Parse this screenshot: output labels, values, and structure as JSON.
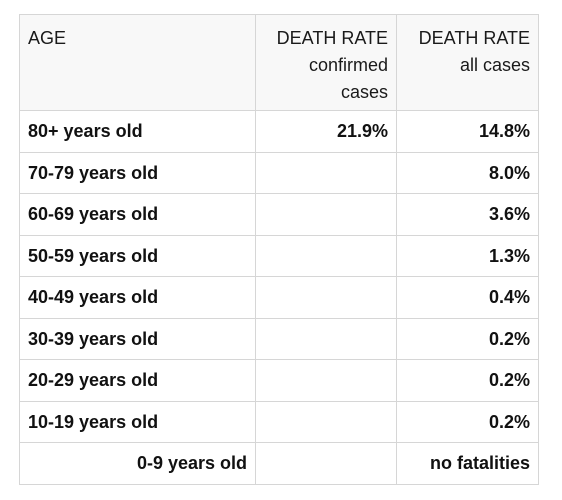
{
  "table": {
    "headers": {
      "age": "AGE",
      "confirmed": [
        "DEATH RATE",
        "confirmed",
        "cases"
      ],
      "all": [
        "DEATH RATE",
        "all cases"
      ]
    },
    "rows": [
      {
        "age": "80+ years old",
        "confirmed": "21.9%",
        "all": "14.8%"
      },
      {
        "age": "70-79 years old",
        "confirmed": "",
        "all": "8.0%"
      },
      {
        "age": "60-69 years old",
        "confirmed": "",
        "all": "3.6%"
      },
      {
        "age": "50-59 years old",
        "confirmed": "",
        "all": "1.3%"
      },
      {
        "age": "40-49 years old",
        "confirmed": "",
        "all": "0.4%"
      },
      {
        "age": "30-39 years old",
        "confirmed": "",
        "all": "0.2%"
      },
      {
        "age": "20-29 years old",
        "confirmed": "",
        "all": "0.2%"
      },
      {
        "age": "10-19 years old",
        "confirmed": "",
        "all": "0.2%"
      },
      {
        "age": "0-9 years old",
        "confirmed": "",
        "all": "no fatalities"
      }
    ]
  }
}
